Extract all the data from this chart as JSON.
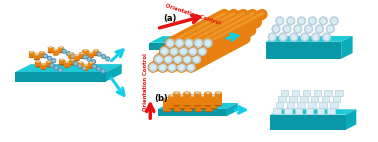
{
  "bg_color": "#ffffff",
  "cyan_top": "#1ECAD8",
  "cyan_side": "#0AAABB",
  "cyan_front": "#0898A8",
  "orange_body": "#E88010",
  "orange_top": "#F0A030",
  "orange_dark": "#B86000",
  "hole_outer": "#B8D0DC",
  "hole_inner": "#D8ECF4",
  "red_col": "#E81010",
  "cyan_arrow": "#10D0E8",
  "label_a": "(a)",
  "label_b": "(b)",
  "orient_text": "Orientation Control"
}
